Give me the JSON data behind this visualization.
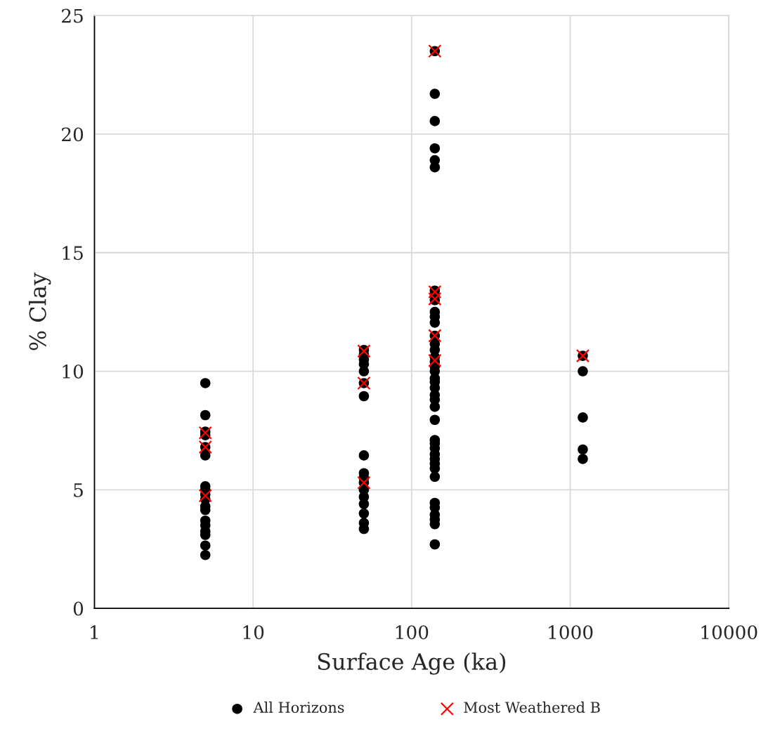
{
  "chart_data": {
    "type": "scatter",
    "xlabel": "Surface Age (ka)",
    "ylabel": "% Clay",
    "log": "x",
    "xlim": [
      1,
      10000
    ],
    "xticks": [
      1,
      10,
      100,
      1000,
      10000
    ],
    "ylim": [
      0,
      25
    ],
    "yticks": [
      0,
      5,
      10,
      15,
      20,
      25
    ],
    "grid": true,
    "legend": "bottom",
    "series": [
      {
        "name": "All Horizons",
        "color": "#000000",
        "marker": "circle",
        "x": [
          5,
          5,
          5,
          5,
          5,
          5,
          5,
          5,
          5,
          5,
          5,
          5,
          5,
          5,
          5,
          5,
          5,
          5,
          50,
          50,
          50,
          50,
          50,
          50,
          50,
          50,
          50,
          50,
          50,
          50,
          50,
          50,
          50,
          50,
          50,
          140,
          140,
          140,
          140,
          140,
          140,
          140,
          140,
          140,
          140,
          140,
          140,
          140,
          140,
          140,
          140,
          140,
          140,
          140,
          140,
          140,
          140,
          140,
          140,
          140,
          140,
          140,
          140,
          140,
          140,
          140,
          140,
          140,
          140,
          140,
          140,
          140,
          140,
          140,
          140,
          1200,
          1200,
          1200,
          1200,
          1200
        ],
        "values": [
          9.5,
          8.15,
          7.45,
          7.3,
          6.8,
          6.45,
          5.15,
          5.0,
          4.8,
          4.6,
          4.3,
          4.15,
          3.7,
          3.5,
          3.25,
          3.1,
          2.65,
          2.25,
          10.9,
          10.7,
          10.5,
          10.3,
          10.0,
          9.5,
          8.95,
          6.45,
          5.7,
          5.5,
          5.3,
          5.0,
          4.7,
          4.4,
          4.0,
          3.6,
          3.35,
          23.5,
          21.7,
          20.55,
          19.4,
          18.9,
          18.6,
          13.4,
          13.2,
          13.0,
          12.5,
          12.3,
          12.05,
          11.5,
          11.15,
          10.9,
          10.6,
          10.4,
          10.2,
          10.0,
          9.7,
          9.55,
          9.3,
          9.0,
          8.8,
          8.5,
          7.95,
          7.1,
          6.95,
          6.75,
          6.5,
          6.3,
          6.1,
          5.9,
          5.55,
          4.45,
          4.25,
          3.95,
          3.75,
          3.55,
          2.7,
          10.65,
          10.0,
          8.05,
          6.7,
          6.3
        ]
      },
      {
        "name": "Most Weathered B",
        "color": "#ff0000",
        "marker": "cross",
        "x": [
          5,
          5,
          5,
          50,
          50,
          50,
          140,
          140,
          140,
          140,
          140,
          1200
        ],
        "values": [
          7.4,
          6.8,
          4.75,
          10.85,
          9.5,
          5.3,
          23.5,
          13.35,
          13.05,
          11.5,
          10.45,
          10.65
        ]
      }
    ]
  }
}
